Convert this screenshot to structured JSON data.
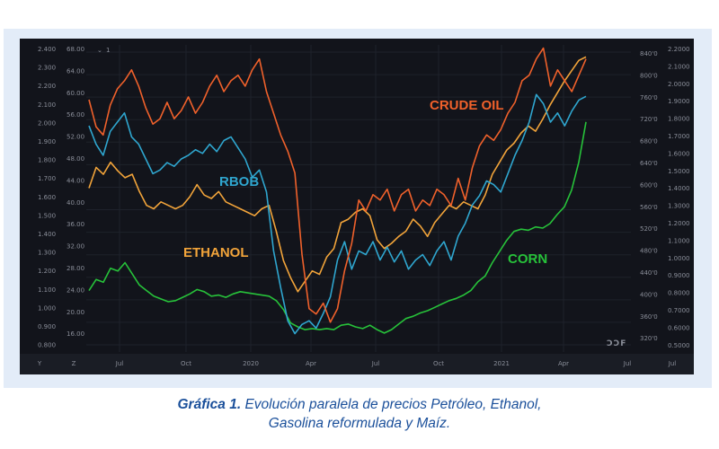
{
  "chart_data": {
    "type": "line",
    "x_ticks": [
      "Y",
      "Z",
      "Jul",
      "Oct",
      "2020",
      "Apr",
      "Jul",
      "Oct",
      "2021",
      "Apr",
      "Jul",
      "Jul"
    ],
    "left_axis_1": {
      "ticks": [
        "2.400",
        "2.300",
        "2.200",
        "2.100",
        "2.000",
        "1.900",
        "1.800",
        "1.700",
        "1.600",
        "1.500",
        "1.400",
        "1.300",
        "1.200",
        "1.100",
        "1.000",
        "0.900",
        "0.800"
      ],
      "range": [
        0.75,
        2.42
      ]
    },
    "left_axis_2": {
      "ticks": [
        "68.00",
        "64.00",
        "60.00",
        "56.00",
        "52.00",
        "48.00",
        "44.00",
        "40.00",
        "36.00",
        "32.00",
        "28.00",
        "24.00",
        "20.00",
        "16.00"
      ],
      "range": [
        12.0,
        68.6
      ]
    },
    "right_axis_1": {
      "ticks": [
        "840'0",
        "800'0",
        "760'0",
        "720'0",
        "680'0",
        "640'0",
        "600'0",
        "560'0",
        "520'0",
        "480'0",
        "440'0",
        "400'0",
        "360'0",
        "320'0"
      ],
      "range": [
        300,
        850
      ]
    },
    "right_axis_2": {
      "ticks": [
        "2.2000",
        "2.1000",
        "2.0000",
        "1.9000",
        "1.8000",
        "1.7000",
        "1.6000",
        "1.5000",
        "1.4000",
        "1.3000",
        "1.2000",
        "1.1000",
        "1.0000",
        "0.9000",
        "0.8000",
        "0.7000",
        "0.6000",
        "0.5000"
      ],
      "range": [
        0.45,
        2.23
      ]
    },
    "toolbar_text": "1",
    "series": [
      {
        "name": "CRUDE OIL",
        "color": "#f0612b",
        "values": [
          58.5,
          53.5,
          52,
          57.5,
          60.5,
          62,
          64,
          61,
          57,
          54,
          55,
          58,
          55,
          56.5,
          59,
          56,
          58,
          61,
          63,
          60,
          62,
          63,
          61,
          64,
          66,
          60,
          56,
          52,
          49,
          45,
          30,
          20,
          19,
          21,
          17.5,
          20,
          27,
          32,
          40,
          38,
          41,
          40,
          42,
          38,
          41,
          42,
          38,
          40,
          39,
          42,
          41,
          39,
          44,
          40,
          46,
          50,
          52,
          51,
          53,
          56,
          58,
          62,
          63,
          66,
          68,
          61,
          64,
          62,
          60,
          63,
          66
        ]
      },
      {
        "name": "RBOB",
        "color": "#2fa6cf",
        "values": [
          1.98,
          1.88,
          1.82,
          1.95,
          2.0,
          2.05,
          1.92,
          1.88,
          1.8,
          1.72,
          1.74,
          1.78,
          1.76,
          1.8,
          1.82,
          1.85,
          1.83,
          1.88,
          1.84,
          1.9,
          1.92,
          1.86,
          1.8,
          1.7,
          1.74,
          1.62,
          1.3,
          1.1,
          0.92,
          0.85,
          0.9,
          0.92,
          0.88,
          0.96,
          1.05,
          1.25,
          1.35,
          1.2,
          1.3,
          1.28,
          1.35,
          1.25,
          1.32,
          1.24,
          1.3,
          1.2,
          1.25,
          1.28,
          1.22,
          1.3,
          1.35,
          1.25,
          1.38,
          1.45,
          1.55,
          1.6,
          1.68,
          1.66,
          1.62,
          1.72,
          1.82,
          1.9,
          2.0,
          2.15,
          2.1,
          2.0,
          2.05,
          1.98,
          2.06,
          2.12,
          2.14
        ]
      },
      {
        "name": "ETHANOL",
        "color": "#f2a43a",
        "values": [
          1.4,
          1.52,
          1.48,
          1.55,
          1.5,
          1.46,
          1.48,
          1.38,
          1.3,
          1.28,
          1.32,
          1.3,
          1.28,
          1.3,
          1.35,
          1.42,
          1.36,
          1.34,
          1.38,
          1.32,
          1.3,
          1.28,
          1.26,
          1.24,
          1.28,
          1.3,
          1.15,
          0.98,
          0.88,
          0.8,
          0.86,
          0.92,
          0.9,
          1.0,
          1.05,
          1.2,
          1.22,
          1.26,
          1.28,
          1.24,
          1.1,
          1.05,
          1.08,
          1.12,
          1.15,
          1.22,
          1.18,
          1.12,
          1.2,
          1.25,
          1.3,
          1.28,
          1.32,
          1.3,
          1.28,
          1.36,
          1.48,
          1.55,
          1.62,
          1.66,
          1.72,
          1.76,
          1.73,
          1.8,
          1.88,
          1.95,
          2.02,
          2.08,
          2.14,
          2.16
        ]
      },
      {
        "name": "CORN",
        "color": "#27c23a",
        "values": [
          410,
          430,
          425,
          450,
          445,
          460,
          440,
          420,
          410,
          400,
          395,
          390,
          392,
          398,
          404,
          412,
          408,
          400,
          402,
          398,
          404,
          408,
          406,
          404,
          402,
          400,
          392,
          376,
          352,
          345,
          340,
          342,
          340,
          342,
          340,
          348,
          350,
          345,
          342,
          348,
          340,
          334,
          340,
          350,
          360,
          364,
          370,
          374,
          380,
          386,
          392,
          396,
          402,
          410,
          426,
          436,
          460,
          480,
          500,
          516,
          520,
          518,
          524,
          522,
          530,
          546,
          560,
          590,
          640,
          712
        ]
      }
    ],
    "legend_placement": "inline labels"
  },
  "caption": {
    "bold": "Gráfica 1.",
    "text": " Evolución paralela de precios Petróleo, Ethanol, Gasolina reformulada y Maíz.",
    "line1": " Evolución paralela de precios Petróleo, Ethanol,",
    "line2": "Gasolina reformulada y Maíz."
  },
  "watermark": "ƆƆF",
  "colors": {
    "panel": "#12141b",
    "frame": "#e3ecf8",
    "caption": "#1a4f9a",
    "grid": "#1e222b"
  }
}
